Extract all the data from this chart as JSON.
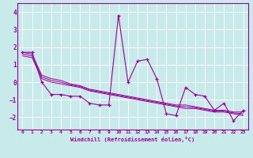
{
  "xlabel": "Windchill (Refroidissement éolien,°C)",
  "background_color": "#c8eaea",
  "grid_color": "#ffffff",
  "line_color": "#990099",
  "ylim": [
    -2.7,
    4.5
  ],
  "xlim": [
    -0.5,
    23.5
  ],
  "yticks": [
    -2,
    -1,
    0,
    1,
    2,
    3,
    4
  ],
  "xticks": [
    0,
    1,
    2,
    3,
    4,
    5,
    6,
    7,
    8,
    9,
    10,
    11,
    12,
    13,
    14,
    15,
    16,
    17,
    18,
    19,
    20,
    21,
    22,
    23
  ],
  "main_y": [
    1.7,
    1.7,
    0.0,
    -0.7,
    -0.7,
    -0.8,
    -0.8,
    -1.2,
    -1.3,
    -1.3,
    3.8,
    0.0,
    1.2,
    1.3,
    0.2,
    -1.8,
    -1.9,
    -0.3,
    -0.7,
    -0.8,
    -1.6,
    -1.2,
    -2.2,
    -1.6
  ],
  "line1_y": [
    1.7,
    1.6,
    0.4,
    0.2,
    0.1,
    -0.1,
    -0.2,
    -0.4,
    -0.5,
    -0.6,
    -0.7,
    -0.8,
    -0.9,
    -1.0,
    -1.1,
    -1.2,
    -1.3,
    -1.3,
    -1.4,
    -1.5,
    -1.6,
    -1.6,
    -1.7,
    -1.7
  ],
  "line2_y": [
    1.5,
    1.4,
    0.2,
    0.0,
    -0.1,
    -0.2,
    -0.3,
    -0.5,
    -0.6,
    -0.7,
    -0.8,
    -0.9,
    -1.0,
    -1.1,
    -1.2,
    -1.3,
    -1.4,
    -1.5,
    -1.5,
    -1.6,
    -1.7,
    -1.7,
    -1.8,
    -1.9
  ],
  "line3_y": [
    1.6,
    1.5,
    0.3,
    0.1,
    0.0,
    -0.15,
    -0.25,
    -0.45,
    -0.55,
    -0.65,
    -0.75,
    -0.85,
    -0.95,
    -1.05,
    -1.15,
    -1.25,
    -1.35,
    -1.4,
    -1.45,
    -1.55,
    -1.65,
    -1.65,
    -1.75,
    -1.8
  ]
}
